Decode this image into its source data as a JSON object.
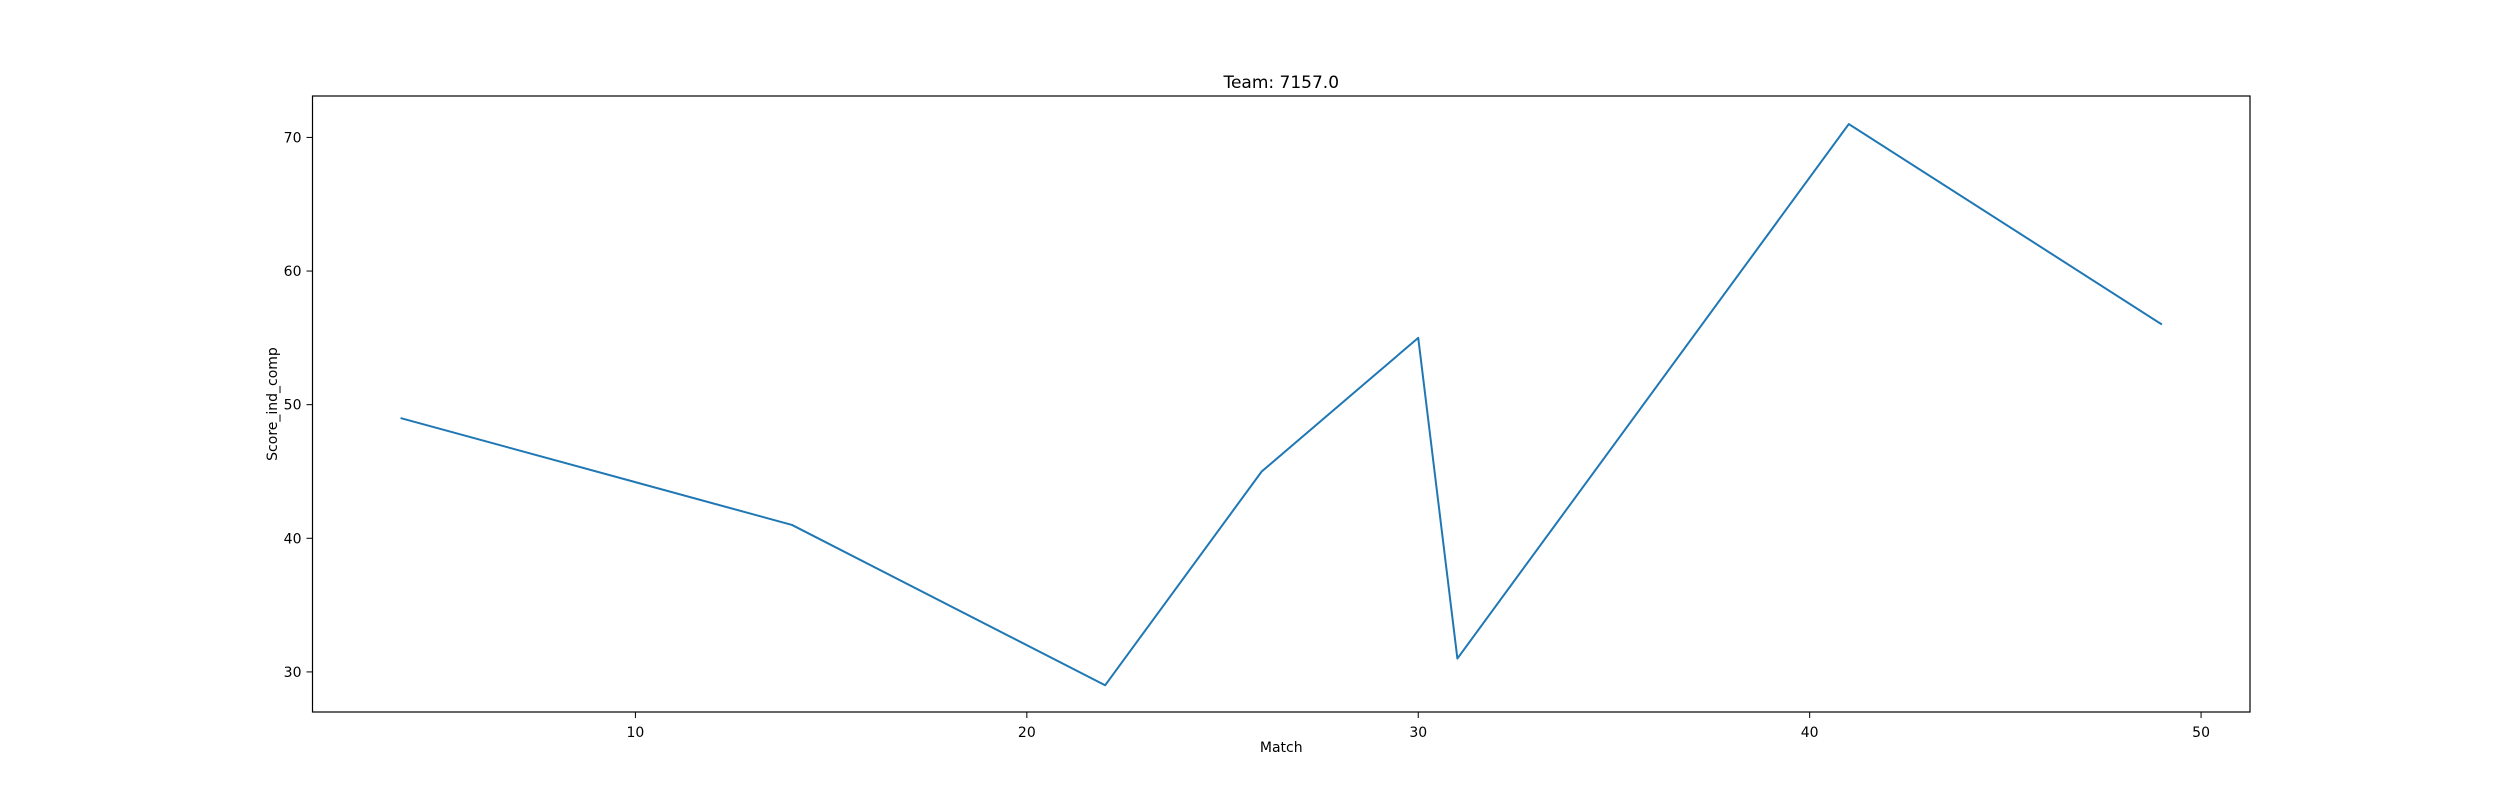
{
  "chart_data": {
    "type": "line",
    "title": "Team: 7157.0",
    "xlabel": "Match",
    "ylabel": "Score_ind_comp",
    "xlim": [
      1.75,
      51.25
    ],
    "ylim": [
      27.0,
      73.1
    ],
    "x_ticks": [
      10,
      20,
      30,
      40,
      50
    ],
    "y_ticks": [
      30,
      40,
      50,
      60,
      70
    ],
    "grid": false,
    "legend": "none",
    "series": [
      {
        "color": "#1f77b4",
        "x": [
          4,
          14,
          22,
          26,
          30,
          31,
          41,
          49
        ],
        "y": [
          49,
          41,
          29,
          45,
          55,
          31,
          71,
          56
        ]
      }
    ]
  }
}
